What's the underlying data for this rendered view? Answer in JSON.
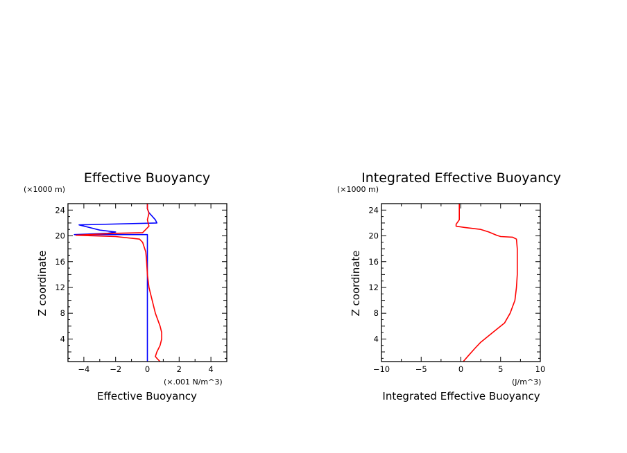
{
  "chart_data": [
    {
      "type": "line",
      "title": "Effective Buoyancy",
      "xlabel": "Effective Buoyancy",
      "x_unit": "(×.001 N/m^3)",
      "ylabel": "Z coordinate",
      "y_unit": "(×1000 m)",
      "xlim": [
        -5,
        5
      ],
      "ylim": [
        0.5,
        25
      ],
      "xticks": [
        -4,
        -2,
        0,
        2,
        4
      ],
      "xtick_labels": [
        "−4",
        "−2",
        "0",
        "2",
        "4"
      ],
      "yticks": [
        4,
        8,
        12,
        16,
        20,
        24
      ],
      "yticks_labels": [
        "4",
        "8",
        "12",
        "16",
        "20",
        "24"
      ],
      "series": [
        {
          "color": "#0000ff",
          "points": [
            [
              0,
              0.5
            ],
            [
              0,
              20.2
            ],
            [
              -4.6,
              20.2
            ],
            [
              -2.5,
              20.4
            ],
            [
              -2,
              20.6
            ],
            [
              -3,
              20.9
            ],
            [
              -4.3,
              21.7
            ],
            [
              0.6,
              22
            ],
            [
              0.5,
              22.5
            ],
            [
              0.1,
              23.6
            ],
            [
              0,
              24.2
            ],
            [
              0,
              25
            ]
          ]
        },
        {
          "color": "#ff0000",
          "points": [
            [
              0.8,
              0.5
            ],
            [
              0.6,
              1
            ],
            [
              0.5,
              1.3
            ],
            [
              0.6,
              2
            ],
            [
              0.8,
              3
            ],
            [
              0.9,
              4
            ],
            [
              0.9,
              5
            ],
            [
              0.8,
              6
            ],
            [
              0.5,
              8
            ],
            [
              0.3,
              10
            ],
            [
              0.1,
              12
            ],
            [
              0,
              14
            ],
            [
              -0.05,
              16
            ],
            [
              -0.1,
              17.5
            ],
            [
              -0.3,
              19
            ],
            [
              -0.5,
              19.5
            ],
            [
              -2,
              19.9
            ],
            [
              -4.5,
              20.1
            ],
            [
              -2,
              20.4
            ],
            [
              -0.3,
              20.5
            ],
            [
              0.1,
              21.5
            ],
            [
              0,
              22.5
            ],
            [
              0.1,
              23.5
            ],
            [
              0,
              24.2
            ],
            [
              0,
              25
            ]
          ]
        }
      ]
    },
    {
      "type": "line",
      "title": "Integrated Effective Buoyancy",
      "xlabel": "Integrated Effective Buoyancy",
      "x_unit": "(J/m^3)",
      "ylabel": "Z coordinate",
      "y_unit": "(×1000 m)",
      "xlim": [
        -10,
        10
      ],
      "ylim": [
        0.5,
        25
      ],
      "xticks": [
        -10,
        -5,
        0,
        5,
        10
      ],
      "xtick_labels": [
        "−10",
        "−5",
        "0",
        "5",
        "10"
      ],
      "yticks": [
        4,
        8,
        12,
        16,
        20,
        24
      ],
      "yticks_labels": [
        "4",
        "8",
        "12",
        "16",
        "20",
        "24"
      ],
      "series": [
        {
          "color": "#ff0000",
          "points": [
            [
              0.3,
              0.5
            ],
            [
              1,
              1.5
            ],
            [
              1.8,
              2.6
            ],
            [
              2.5,
              3.5
            ],
            [
              3.5,
              4.5
            ],
            [
              4.5,
              5.5
            ],
            [
              5.5,
              6.5
            ],
            [
              6.2,
              8
            ],
            [
              6.8,
              10
            ],
            [
              7,
              12
            ],
            [
              7.1,
              14
            ],
            [
              7.1,
              16
            ],
            [
              7.1,
              18
            ],
            [
              7,
              19.5
            ],
            [
              6.5,
              19.8
            ],
            [
              5,
              19.9
            ],
            [
              4.5,
              20.1
            ],
            [
              3.5,
              20.6
            ],
            [
              2.5,
              21
            ],
            [
              0.5,
              21.3
            ],
            [
              -0.6,
              21.5
            ],
            [
              -0.6,
              21.8
            ],
            [
              -0.2,
              22.5
            ],
            [
              -0.2,
              25
            ]
          ]
        }
      ]
    }
  ]
}
